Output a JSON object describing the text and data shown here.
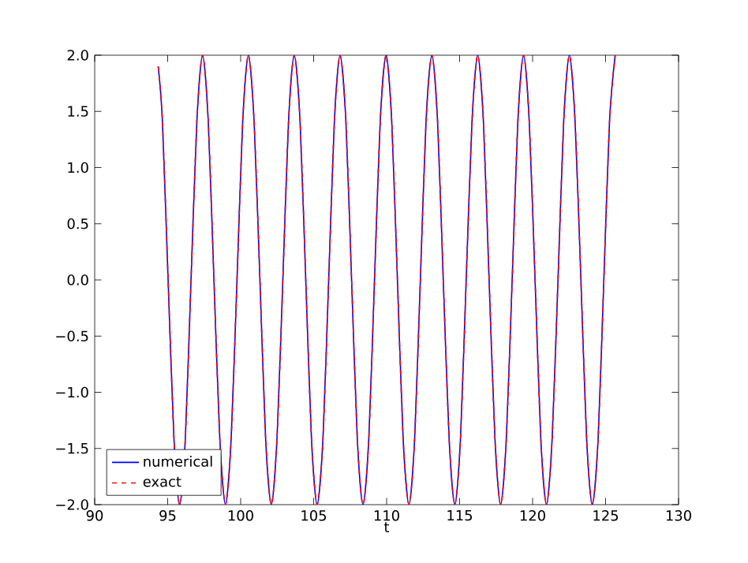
{
  "chart_data": {
    "type": "line",
    "xlabel": "t",
    "xlim": [
      90,
      130
    ],
    "ylim": [
      -2.0,
      2.0
    ],
    "xticks": [
      90,
      95,
      100,
      105,
      110,
      115,
      120,
      125,
      130
    ],
    "yticks": [
      {
        "value": -2.0,
        "label": "−2.0"
      },
      {
        "value": -1.5,
        "label": "−1.5"
      },
      {
        "value": -1.0,
        "label": "−1.0"
      },
      {
        "value": -0.5,
        "label": "−0.5"
      },
      {
        "value": 0.0,
        "label": "0.0"
      },
      {
        "value": 0.5,
        "label": "0.5"
      },
      {
        "value": 1.0,
        "label": "1.0"
      },
      {
        "value": 1.5,
        "label": "1.5"
      },
      {
        "value": 2.0,
        "label": "2.0"
      }
    ],
    "legend": "bottom left",
    "grid": false,
    "x": [
      94.35,
      94.64,
      95.03,
      95.43,
      95.82,
      96.21,
      96.6,
      97.0,
      97.39,
      97.78,
      98.17,
      98.57,
      98.96,
      99.35,
      99.75,
      100.14,
      100.53,
      100.92,
      101.32,
      101.71,
      102.1,
      102.49,
      102.89,
      103.28,
      103.67,
      104.07,
      104.46,
      104.85,
      105.24,
      105.64,
      106.03,
      106.42,
      106.81,
      107.21,
      107.6,
      107.99,
      108.38,
      108.78,
      109.17,
      109.56,
      109.96,
      110.35,
      110.74,
      111.13,
      111.53,
      111.92,
      112.31,
      112.7,
      113.1,
      113.49,
      113.88,
      114.28,
      114.67,
      115.06,
      115.45,
      115.85,
      116.24,
      116.63,
      117.02,
      117.42,
      117.81,
      118.2,
      118.6,
      118.99,
      119.38,
      119.77,
      120.17,
      120.56,
      120.95,
      121.34,
      121.74,
      122.13,
      122.52,
      122.91,
      123.31,
      123.7,
      124.09,
      124.49,
      124.88,
      125.27,
      125.66
    ],
    "series": [
      {
        "name": "numerical",
        "color": "#0000ff",
        "line_style": "solid",
        "values": [
          1.9,
          1.41,
          0,
          -1.41,
          -2,
          -1.41,
          0,
          1.41,
          2,
          1.41,
          0,
          -1.41,
          -2,
          -1.41,
          0,
          1.41,
          2,
          1.41,
          0,
          -1.41,
          -2,
          -1.41,
          0,
          1.41,
          2,
          1.41,
          0,
          -1.41,
          -2,
          -1.41,
          0,
          1.41,
          2,
          1.41,
          0,
          -1.41,
          -2,
          -1.41,
          0,
          1.41,
          2,
          1.41,
          0,
          -1.41,
          -2,
          -1.41,
          0,
          1.41,
          2,
          1.41,
          0,
          -1.41,
          -2,
          -1.41,
          0,
          1.41,
          2,
          1.41,
          0,
          -1.41,
          -2,
          -1.41,
          0,
          1.41,
          2,
          1.41,
          0,
          -1.41,
          -2,
          -1.41,
          0,
          1.41,
          2,
          1.41,
          0,
          -1.41,
          -2,
          -1.41,
          0,
          1.41,
          2
        ]
      },
      {
        "name": "exact",
        "color": "#ff0000",
        "line_style": "dashed",
        "values": [
          1.9,
          1.41,
          0,
          -1.41,
          -2,
          -1.41,
          0,
          1.41,
          2,
          1.41,
          0,
          -1.41,
          -2,
          -1.41,
          0,
          1.41,
          2,
          1.41,
          0,
          -1.41,
          -2,
          -1.41,
          0,
          1.41,
          2,
          1.41,
          0,
          -1.41,
          -2,
          -1.41,
          0,
          1.41,
          2,
          1.41,
          0,
          -1.41,
          -2,
          -1.41,
          0,
          1.41,
          2,
          1.41,
          0,
          -1.41,
          -2,
          -1.41,
          0,
          1.41,
          2,
          1.41,
          0,
          -1.41,
          -2,
          -1.41,
          0,
          1.41,
          2,
          1.41,
          0,
          -1.41,
          -2,
          -1.41,
          0,
          1.41,
          2,
          1.41,
          0,
          -1.41,
          -2,
          -1.41,
          0,
          1.41,
          2,
          1.41,
          0,
          -1.41,
          -2,
          -1.41,
          0,
          1.41,
          2
        ]
      }
    ]
  }
}
